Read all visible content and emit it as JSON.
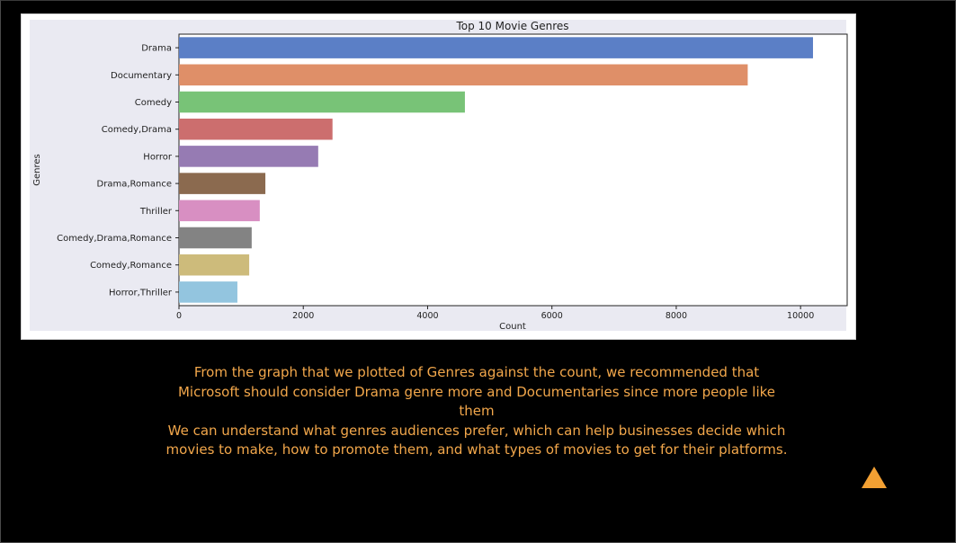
{
  "chart_data": {
    "type": "bar",
    "orientation": "horizontal",
    "title": "Top 10 Movie Genres",
    "xlabel": "Count",
    "ylabel": "Genres",
    "categories": [
      "Drama",
      "Documentary",
      "Comedy",
      "Comedy,Drama",
      "Horror",
      "Drama,Romance",
      "Thriller",
      "Comedy,Drama,Romance",
      "Comedy,Romance",
      "Horror,Thriller"
    ],
    "values": [
      10200,
      9150,
      4600,
      2470,
      2240,
      1390,
      1300,
      1170,
      1130,
      940
    ],
    "xlim": [
      0,
      10750
    ],
    "xticks": [
      0,
      2000,
      4000,
      6000,
      8000,
      10000
    ],
    "colors": [
      "#5b7fc6",
      "#df8f68",
      "#78c377",
      "#cc6e6e",
      "#967bb3",
      "#8b6a4f",
      "#d88fc2",
      "#838383",
      "#cdbb7b",
      "#93c5df"
    ],
    "grid": false,
    "background": "#eaeaf2"
  },
  "caption": {
    "paragraph1": "From the graph that we plotted of Genres against the count, we recommended that Microsoft should consider Drama genre more and Documentaries since more people like them",
    "paragraph2": "We can understand what genres audiences prefer, which can help businesses decide which movies to make, how to promote them, and what types of movies to get for their platforms."
  },
  "scroll_top_icon": "triangle-up",
  "accent_color": "#f2a74b"
}
